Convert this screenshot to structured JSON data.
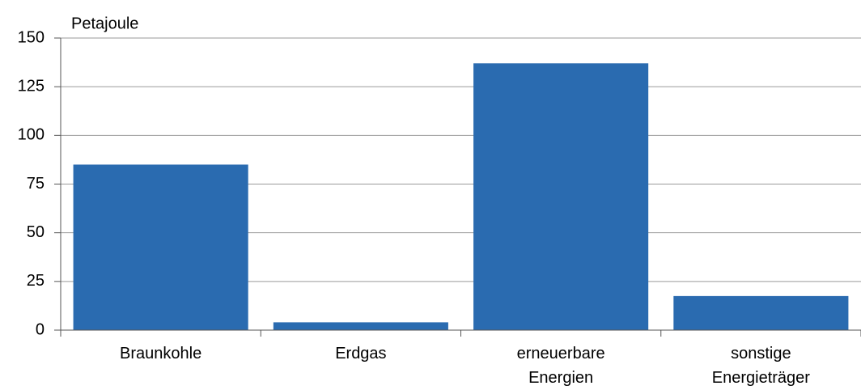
{
  "chart_data": {
    "type": "bar",
    "y_label": "Petajoule",
    "categories": [
      "Braunkohle",
      "Erdgas",
      "erneuerbare Energien",
      "sonstige Energieträger"
    ],
    "values": [
      85,
      4,
      137,
      17.5
    ],
    "color": "#2a6bb0",
    "ylim": [
      0,
      150
    ],
    "yticks": [
      0,
      25,
      50,
      75,
      100,
      125,
      150
    ],
    "grid": true
  }
}
